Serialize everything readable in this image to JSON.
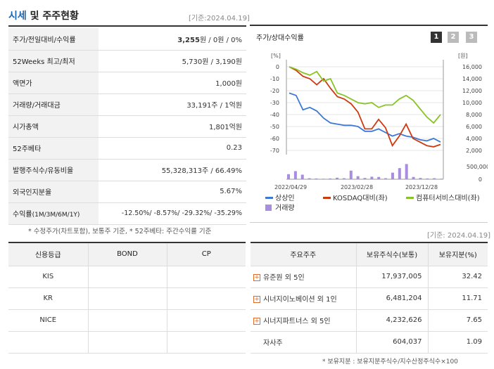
{
  "header": {
    "title_a": "시세",
    "title_b": " 및 주주현황",
    "stamp": "[기준:2024.04.19]"
  },
  "price_table": [
    {
      "key": "주가/전일대비/수익률",
      "value_bold": "3,255",
      "value_rest": "원 / 0원 / 0%"
    },
    {
      "key": "52Weeks 최고/최저",
      "value": "5,730원 / 3,190원"
    },
    {
      "key": "액면가",
      "value": "1,000원"
    },
    {
      "key": "거래량/거래대금",
      "value": "33,191주 / 1억원"
    },
    {
      "key": "시가총액",
      "value": "1,801억원"
    },
    {
      "key": "52주베타",
      "value": "0.23"
    },
    {
      "key": "발행주식수/유동비율",
      "value": "55,328,313주 / 66.49%"
    },
    {
      "key": "외국인지분율",
      "value": "5.67%"
    }
  ],
  "returns_row": {
    "key": "수익률",
    "key_sub": "(1M/3M/6M/1Y)",
    "value": "-12.50%/ -8.57%/ -29.32%/ -35.29%"
  },
  "price_note": "* 수정주가(차트포함), 보통주 기준, * 52주베타: 주간수익률 기준",
  "chart_panel": {
    "title": "주가/상대수익률",
    "period_buttons": [
      "1",
      "2",
      "3"
    ],
    "colors": {
      "stock": "#3b78d8",
      "kosdaq": "#cc3b10",
      "sector": "#88c425",
      "volume": "#a98de0"
    }
  },
  "chart_data": {
    "type": "line",
    "left_axis": {
      "unit": "[%]",
      "ticks": [
        "0",
        "-10",
        "-20",
        "-30",
        "-40",
        "-50",
        "-60",
        "-70"
      ],
      "range": [
        -75,
        5
      ]
    },
    "right_axis": {
      "unit": "[원]",
      "ticks": [
        "16,000",
        "14,000",
        "12,000",
        "10,000",
        "8,000",
        "6,000",
        "4,000",
        "2,000"
      ],
      "range": [
        1000,
        17000
      ]
    },
    "volume_axis": {
      "ticks": [
        "500,000",
        "0"
      ],
      "range": [
        0,
        600000
      ]
    },
    "x_ticks": [
      "2022/04/29",
      "2023/02/28",
      "2023/12/28"
    ],
    "series": [
      {
        "name": "상상인",
        "axis": "left",
        "values": [
          -22,
          -24,
          -36,
          -34,
          -37,
          -43,
          -47,
          -48,
          -49,
          -49,
          -50,
          -54,
          -54,
          -52,
          -55,
          -58,
          -56,
          -58,
          -59,
          -61,
          -62,
          -60,
          -63
        ]
      },
      {
        "name": "KOSDAQ대비(좌)",
        "axis": "left",
        "values": [
          0,
          -3,
          -8,
          -10,
          -15,
          -10,
          -18,
          -25,
          -27,
          -31,
          -38,
          -52,
          -52,
          -44,
          -51,
          -66,
          -58,
          -48,
          -60,
          -63,
          -66,
          -67,
          -65
        ]
      },
      {
        "name": "컴퓨터서비스대비(좌)",
        "axis": "left",
        "values": [
          0,
          -2,
          -5,
          -7,
          -4,
          -12,
          -10,
          -22,
          -24,
          -27,
          -30,
          -31,
          -30,
          -34,
          -32,
          -32,
          -27,
          -24,
          -28,
          -35,
          -42,
          -47,
          -40
        ]
      }
    ],
    "volume": {
      "name": "거래량",
      "values": [
        200000,
        320000,
        180000,
        40000,
        30000,
        20000,
        30000,
        60000,
        40000,
        340000,
        120000,
        50000,
        100000,
        90000,
        40000,
        260000,
        440000,
        600000,
        90000,
        50000,
        30000,
        40000,
        20000
      ]
    }
  },
  "chart_stamp": "[기준: 2024.04.19]",
  "credit": {
    "headers": [
      "신용등급",
      "BOND",
      "CP"
    ],
    "rows": [
      {
        "agency": "KIS",
        "bond": "",
        "cp": ""
      },
      {
        "agency": "KR",
        "bond": "",
        "cp": ""
      },
      {
        "agency": "NICE",
        "bond": "",
        "cp": ""
      },
      {
        "agency": "",
        "bond": "",
        "cp": ""
      }
    ]
  },
  "holders": {
    "headers": [
      "주요주주",
      "보유주식수(보통)",
      "보유지분(%)"
    ],
    "rows": [
      {
        "name": "유준원 외 5인",
        "shares": "17,937,005",
        "pct": "32.42",
        "expandable": true
      },
      {
        "name": "시너지이노베이션 외 1인",
        "shares": "6,481,204",
        "pct": "11.71",
        "expandable": true
      },
      {
        "name": "시너지파트너스 외 5인",
        "shares": "4,232,626",
        "pct": "7.65",
        "expandable": true
      },
      {
        "name": "자사주",
        "shares": "604,037",
        "pct": "1.09",
        "expandable": false
      }
    ],
    "note": "* 보유지분 : 보유지분주식수/지수산정주식수×100"
  }
}
